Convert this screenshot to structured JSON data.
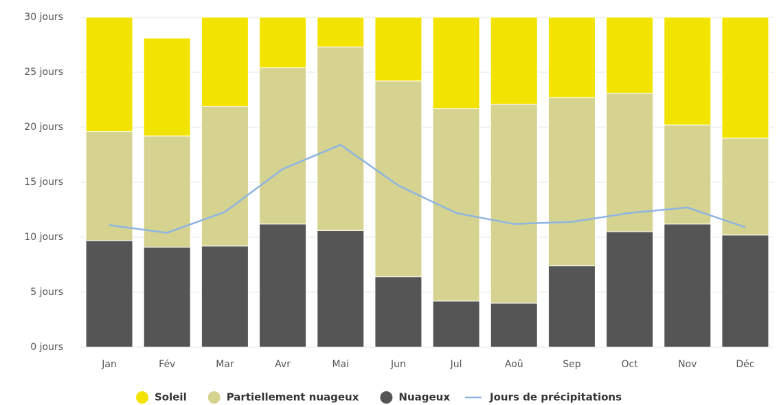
{
  "chart_data": {
    "type": "bar",
    "categories": [
      "Jan",
      "Fév",
      "Mar",
      "Avr",
      "Mai",
      "Jun",
      "Jul",
      "Aoû",
      "Sep",
      "Oct",
      "Nov",
      "Déc"
    ],
    "series": [
      {
        "name": "Soleil",
        "color": "#f2e400",
        "values": [
          10.4,
          8.9,
          8.1,
          4.6,
          2.7,
          5.8,
          8.3,
          7.9,
          7.3,
          6.9,
          9.8,
          11.0
        ]
      },
      {
        "name": "Partiellement nuageux",
        "color": "#d5d38f",
        "values": [
          9.9,
          10.1,
          12.7,
          14.2,
          16.7,
          17.8,
          17.5,
          18.1,
          15.3,
          12.6,
          9.0,
          8.8
        ]
      },
      {
        "name": "Nuageux",
        "color": "#555555",
        "values": [
          9.7,
          9.1,
          9.2,
          11.2,
          10.6,
          6.4,
          4.2,
          4.0,
          7.4,
          10.5,
          11.2,
          10.2
        ]
      },
      {
        "name": "Jours de précipitations",
        "color": "#8db4e2",
        "type": "line",
        "values": [
          11.1,
          10.4,
          12.3,
          16.2,
          18.4,
          14.7,
          12.2,
          11.2,
          11.4,
          12.2,
          12.7,
          10.9
        ]
      }
    ],
    "stacked": true,
    "ylim": [
      0,
      30
    ],
    "yticks": [
      {
        "value": 0,
        "label": "0 jours"
      },
      {
        "value": 5,
        "label": "5 jours"
      },
      {
        "value": 10,
        "label": "10 jours"
      },
      {
        "value": 15,
        "label": "15 jours"
      },
      {
        "value": 20,
        "label": "20 jours"
      },
      {
        "value": 25,
        "label": "25 jours"
      },
      {
        "value": 30,
        "label": "30 jours"
      }
    ],
    "legend": "bottom"
  }
}
